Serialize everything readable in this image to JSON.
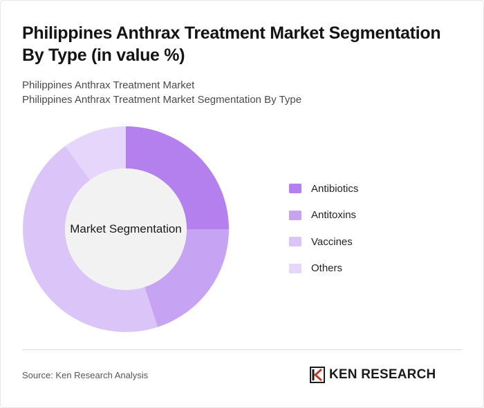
{
  "title": "Philippines Anthrax Treatment Market Segmentation By Type (in value %)",
  "subtitle_line1": "Philippines Anthrax Treatment Market",
  "subtitle_line2": "Philippines Anthrax Treatment Market Segmentation By Type",
  "source": "Source: Ken Research Analysis",
  "brand": "KEN RESEARCH",
  "chart_data": {
    "type": "pie",
    "donut": true,
    "center_label": "Market Segmentation",
    "categories": [
      "Antibiotics",
      "Antitoxins",
      "Vaccines",
      "Others"
    ],
    "values": [
      25,
      20,
      45,
      10
    ],
    "colors": [
      "#b380ee",
      "#c7a3f3",
      "#dbc4f8",
      "#e7d6fb"
    ],
    "legend_position": "right"
  }
}
